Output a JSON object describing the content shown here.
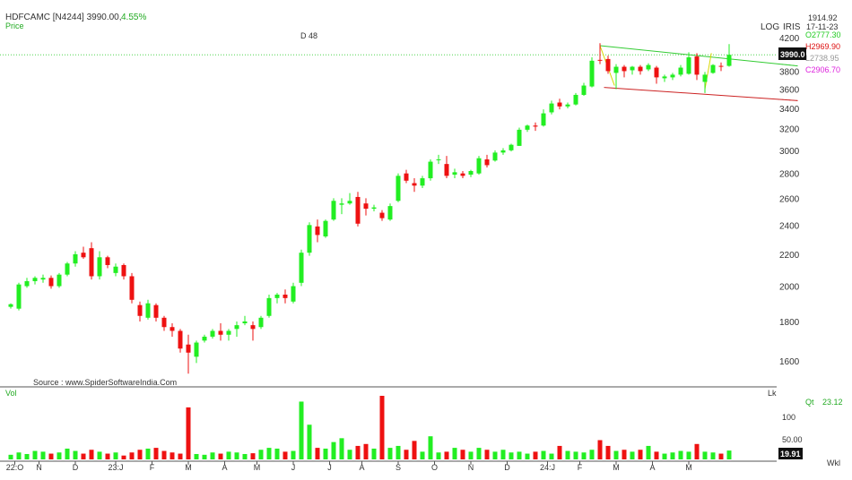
{
  "header": {
    "symbol_line": "HDFCAMC [N4244] 3990.00,",
    "change_pct": "4.55%",
    "price_label": "Price",
    "marker": "D 48",
    "log_label": "LOG",
    "iris_label": "IRIS",
    "top_value": "1914.92",
    "top_date": "17-11-23"
  },
  "ohlc": {
    "open": "O2777.30",
    "high": "H2969.90",
    "low": "L2738.95",
    "close": "C2906.70",
    "last_price": "3990.0"
  },
  "source": "Source : www.SpiderSoftwareIndia.Com",
  "volume_panel": {
    "label": "Vol",
    "unit": "Lk",
    "qt_label": "Qt",
    "qt_value": "23.12",
    "last_volume": "19.91",
    "ticks": [
      "100",
      "50.00"
    ]
  },
  "timeframe": "Wkl",
  "colors": {
    "up": "#22ee22",
    "down": "#ee1111",
    "ohlc_open": "#22cc22",
    "ohlc_high": "#dd1111",
    "ohlc_low": "#999999",
    "ohlc_close": "#dd22dd",
    "change": "#22aa22",
    "upper_trend": "#33cc33",
    "lower_trend": "#cc2222",
    "flag_arms": "#d8d800"
  },
  "chart_data": {
    "type": "candlestick",
    "y_scale": "log",
    "ylim": [
      1500,
      4250
    ],
    "y_ticks": [
      1600,
      1800,
      2000,
      2200,
      2400,
      2600,
      2800,
      3000,
      3200,
      3400,
      3600,
      3800,
      4000,
      4200
    ],
    "x_labels": [
      "22:O",
      "N",
      "D",
      "23:J",
      "F",
      "M",
      "A",
      "M",
      "J",
      "J",
      "A",
      "S",
      "O",
      "N",
      "D",
      "24:J",
      "F",
      "M",
      "A",
      "M"
    ],
    "x_label_weeks": [
      0.5,
      3.5,
      8,
      13,
      17.5,
      22,
      26.5,
      30.5,
      35,
      39.5,
      43.5,
      48,
      52.5,
      57,
      61.5,
      66.5,
      70.5,
      75,
      79.5,
      84
    ],
    "candles": [
      [
        1880,
        1900,
        1870,
        1895
      ],
      [
        1870,
        2020,
        1860,
        2010
      ],
      [
        2000,
        2050,
        1990,
        2030
      ],
      [
        2030,
        2060,
        2010,
        2050
      ],
      [
        2040,
        2070,
        2020,
        2050
      ],
      [
        2050,
        2065,
        1985,
        2000
      ],
      [
        2000,
        2080,
        1990,
        2070
      ],
      [
        2070,
        2150,
        2060,
        2140
      ],
      [
        2140,
        2220,
        2120,
        2200
      ],
      [
        2210,
        2250,
        2170,
        2180
      ],
      [
        2240,
        2280,
        2040,
        2060
      ],
      [
        2060,
        2220,
        2040,
        2180
      ],
      [
        2180,
        2190,
        2110,
        2130
      ],
      [
        2080,
        2140,
        2060,
        2120
      ],
      [
        2130,
        2140,
        2040,
        2060
      ],
      [
        2060,
        2080,
        1900,
        1920
      ],
      [
        1890,
        1910,
        1800,
        1830
      ],
      [
        1820,
        1920,
        1810,
        1900
      ],
      [
        1890,
        1900,
        1800,
        1820
      ],
      [
        1820,
        1830,
        1750,
        1770
      ],
      [
        1770,
        1790,
        1720,
        1750
      ],
      [
        1750,
        1760,
        1640,
        1660
      ],
      [
        1680,
        1730,
        1540,
        1640
      ],
      [
        1620,
        1700,
        1590,
        1690
      ],
      [
        1700,
        1730,
        1690,
        1720
      ],
      [
        1720,
        1760,
        1710,
        1750
      ],
      [
        1750,
        1790,
        1700,
        1730
      ],
      [
        1730,
        1760,
        1700,
        1750
      ],
      [
        1760,
        1800,
        1720,
        1780
      ],
      [
        1790,
        1830,
        1780,
        1800
      ],
      [
        1780,
        1800,
        1700,
        1760
      ],
      [
        1770,
        1830,
        1760,
        1820
      ],
      [
        1830,
        1950,
        1820,
        1930
      ],
      [
        1930,
        1960,
        1900,
        1950
      ],
      [
        1950,
        1980,
        1900,
        1930
      ],
      [
        1910,
        2020,
        1900,
        2000
      ],
      [
        2020,
        2230,
        2000,
        2210
      ],
      [
        2210,
        2420,
        2190,
        2400
      ],
      [
        2390,
        2440,
        2280,
        2330
      ],
      [
        2320,
        2440,
        2310,
        2430
      ],
      [
        2440,
        2600,
        2430,
        2580
      ],
      [
        2550,
        2600,
        2480,
        2560
      ],
      [
        2560,
        2640,
        2550,
        2580
      ],
      [
        2610,
        2650,
        2390,
        2410
      ],
      [
        2560,
        2600,
        2470,
        2520
      ],
      [
        2520,
        2550,
        2500,
        2530
      ],
      [
        2490,
        2510,
        2430,
        2450
      ],
      [
        2440,
        2560,
        2430,
        2540
      ],
      [
        2580,
        2800,
        2570,
        2780
      ],
      [
        2800,
        2830,
        2720,
        2740
      ],
      [
        2720,
        2760,
        2650,
        2700
      ],
      [
        2700,
        2780,
        2680,
        2760
      ],
      [
        2760,
        2920,
        2740,
        2900
      ],
      [
        2920,
        2960,
        2880,
        2920
      ],
      [
        2880,
        2950,
        2760,
        2780
      ],
      [
        2790,
        2840,
        2760,
        2810
      ],
      [
        2800,
        2820,
        2760,
        2780
      ],
      [
        2790,
        2830,
        2770,
        2820
      ],
      [
        2800,
        2950,
        2790,
        2930
      ],
      [
        2920,
        2960,
        2850,
        2870
      ],
      [
        2910,
        3000,
        2900,
        2980
      ],
      [
        2980,
        3020,
        2960,
        3000
      ],
      [
        3000,
        3060,
        2990,
        3050
      ],
      [
        3040,
        3210,
        3040,
        3190
      ],
      [
        3190,
        3240,
        3170,
        3230
      ],
      [
        3230,
        3260,
        3180,
        3220
      ],
      [
        3230,
        3390,
        3220,
        3350
      ],
      [
        3360,
        3480,
        3340,
        3450
      ],
      [
        3460,
        3500,
        3390,
        3420
      ],
      [
        3420,
        3460,
        3400,
        3440
      ],
      [
        3440,
        3560,
        3430,
        3540
      ],
      [
        3540,
        3670,
        3530,
        3640
      ],
      [
        3630,
        3960,
        3620,
        3920
      ],
      [
        3930,
        4130,
        3880,
        3920
      ],
      [
        3940,
        3980,
        3770,
        3800
      ],
      [
        3780,
        3880,
        3600,
        3850
      ],
      [
        3850,
        3870,
        3730,
        3800
      ],
      [
        3810,
        3860,
        3760,
        3850
      ],
      [
        3850,
        3870,
        3760,
        3800
      ],
      [
        3820,
        3890,
        3800,
        3870
      ],
      [
        3840,
        3860,
        3660,
        3730
      ],
      [
        3720,
        3760,
        3680,
        3740
      ],
      [
        3730,
        3780,
        3700,
        3760
      ],
      [
        3760,
        3870,
        3740,
        3840
      ],
      [
        3770,
        4020,
        3760,
        3960
      ],
      [
        3970,
        4010,
        3700,
        3760
      ],
      [
        3680,
        3790,
        3560,
        3760
      ],
      [
        3780,
        3880,
        3770,
        3870
      ],
      [
        3860,
        3900,
        3800,
        3850
      ],
      [
        3860,
        4120,
        3850,
        3990
      ]
    ],
    "volume": [
      12,
      18,
      14,
      22,
      20,
      15,
      18,
      28,
      22,
      15,
      25,
      20,
      15,
      18,
      10,
      18,
      25,
      28,
      30,
      22,
      18,
      15,
      135,
      14,
      12,
      18,
      15,
      20,
      18,
      14,
      16,
      25,
      30,
      28,
      20,
      22,
      150,
      90,
      30,
      28,
      45,
      55,
      25,
      35,
      40,
      28,
      165,
      30,
      35,
      25,
      48,
      20,
      60,
      18,
      20,
      30,
      25,
      20,
      30,
      25,
      20,
      25,
      18,
      20,
      15,
      20,
      22,
      15,
      35,
      22,
      20,
      18,
      25,
      50,
      35,
      22,
      25,
      20,
      25,
      35,
      20,
      15,
      18,
      22,
      20,
      40,
      20,
      18,
      15,
      23
    ],
    "trendlines": [
      {
        "name": "upper",
        "from": [
          73,
          4100
        ],
        "to": [
          97.5,
          3860
        ]
      },
      {
        "name": "lower",
        "from": [
          73.5,
          3620
        ],
        "to": [
          97.5,
          3480
        ]
      }
    ],
    "flag_arms": [
      {
        "from": [
          73,
          4100
        ],
        "to": [
          74.8,
          3640
        ]
      },
      {
        "from": [
          86,
          3600
        ],
        "to": [
          86.8,
          4010
        ]
      }
    ],
    "reference_level": 3990
  }
}
